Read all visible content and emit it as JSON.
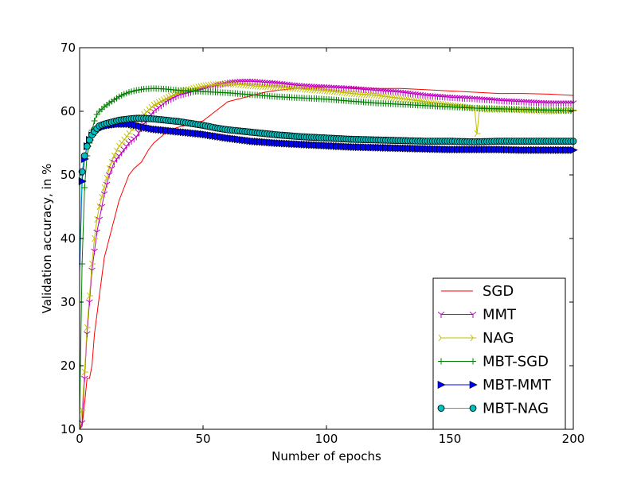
{
  "chart_data": {
    "type": "line",
    "title": "",
    "xlabel": "Number of epochs",
    "ylabel": "Validation accuracy, in %",
    "xlim": [
      0,
      200
    ],
    "ylim": [
      10,
      70
    ],
    "xticks": [
      0,
      50,
      100,
      150,
      200
    ],
    "yticks": [
      10,
      20,
      30,
      40,
      50,
      60,
      70
    ],
    "grid": false,
    "legend_position": "lower-right",
    "series": [
      {
        "name": "SGD",
        "color": "#ff0000",
        "marker": "none",
        "x": [
          0,
          1,
          2,
          3,
          4,
          5,
          6,
          7,
          8,
          9,
          10,
          12,
          14,
          16,
          18,
          20,
          22,
          25,
          28,
          30,
          33,
          36,
          40,
          45,
          50,
          55,
          60,
          65,
          70,
          75,
          80,
          85,
          90,
          95,
          100,
          110,
          120,
          130,
          140,
          150,
          160,
          170,
          180,
          190,
          200
        ],
        "values": [
          10,
          10.5,
          14,
          18,
          18,
          20,
          25,
          28,
          31,
          34,
          37,
          40,
          43,
          46,
          48,
          50,
          51,
          52,
          54,
          55,
          56,
          57,
          57.5,
          58,
          58.5,
          60,
          61.5,
          62,
          62.5,
          63,
          63.3,
          63.5,
          63.6,
          63.7,
          63.8,
          63.7,
          63.6,
          63.6,
          63.4,
          63.2,
          63,
          62.8,
          62.8,
          62.7,
          62.5
        ]
      },
      {
        "name": "MMT",
        "color": "#bf00bf",
        "marker": "tri_down",
        "x": [
          0,
          1,
          2,
          3,
          4,
          5,
          6,
          7,
          8,
          10,
          12,
          14,
          16,
          18,
          20,
          23,
          26,
          30,
          35,
          40,
          45,
          50,
          55,
          60,
          65,
          70,
          80,
          90,
          100,
          110,
          120,
          130,
          140,
          150,
          160,
          170,
          180,
          190,
          200
        ],
        "values": [
          10,
          11,
          18,
          25,
          30,
          35,
          38,
          41,
          43,
          47,
          50,
          52,
          53,
          54,
          55,
          56,
          58,
          60,
          61.5,
          62.5,
          63,
          63.5,
          64,
          64.5,
          64.7,
          64.7,
          64.4,
          64,
          63.8,
          63.6,
          63.3,
          63,
          62.5,
          62.2,
          62,
          61.7,
          61.5,
          61.3,
          61.3
        ]
      },
      {
        "name": "NAG",
        "color": "#bfbf00",
        "marker": "tri_right",
        "x": [
          0,
          1,
          2,
          3,
          4,
          5,
          6,
          7,
          8,
          10,
          12,
          14,
          16,
          18,
          20,
          23,
          26,
          30,
          35,
          40,
          45,
          50,
          55,
          60,
          65,
          70,
          80,
          90,
          100,
          110,
          120,
          130,
          140,
          150,
          155,
          160,
          161,
          162,
          165,
          170,
          180,
          190,
          200
        ],
        "values": [
          10,
          13,
          19,
          26,
          31,
          36,
          40,
          43,
          45,
          48,
          51,
          53,
          54.5,
          55.5,
          56.5,
          58,
          59.5,
          61,
          62,
          63,
          63.5,
          64,
          64.2,
          64.3,
          64.2,
          64,
          63.8,
          63.5,
          63.2,
          62.8,
          62.5,
          62,
          61.5,
          61,
          60.8,
          60.5,
          56.5,
          60.5,
          60.3,
          60.3,
          60.2,
          60,
          60.2
        ]
      },
      {
        "name": "MBT-SGD",
        "color": "#008000",
        "marker": "plus",
        "x": [
          0,
          1,
          2,
          3,
          4,
          5,
          6,
          7,
          8,
          10,
          12,
          14,
          16,
          18,
          20,
          23,
          26,
          30,
          35,
          40,
          45,
          50,
          60,
          70,
          80,
          90,
          100,
          110,
          120,
          130,
          140,
          150,
          160,
          170,
          180,
          190,
          200
        ],
        "values": [
          12,
          36,
          48,
          53,
          55,
          57,
          58.5,
          59.5,
          60,
          60.7,
          61.3,
          61.8,
          62.3,
          62.7,
          63,
          63.3,
          63.5,
          63.6,
          63.5,
          63.3,
          63.2,
          63.1,
          62.9,
          62.6,
          62.3,
          62.1,
          61.9,
          61.6,
          61.3,
          61.1,
          60.9,
          60.7,
          60.5,
          60.4,
          60.3,
          60.2,
          60.1
        ]
      },
      {
        "name": "MBT-MMT",
        "color": "#0000ff",
        "marker": "triangle_right",
        "x": [
          0,
          1,
          2,
          3,
          4,
          5,
          6,
          7,
          8,
          10,
          12,
          14,
          16,
          18,
          20,
          23,
          26,
          30,
          35,
          40,
          45,
          50,
          55,
          60,
          70,
          80,
          90,
          100,
          110,
          120,
          130,
          140,
          150,
          160,
          170,
          180,
          190,
          200
        ],
        "values": [
          34.7,
          49,
          52.5,
          54.5,
          55.5,
          56.2,
          56.7,
          57,
          57.3,
          57.6,
          57.8,
          57.9,
          58,
          58,
          58,
          57.8,
          57.5,
          57.2,
          57,
          56.8,
          56.6,
          56.4,
          56.1,
          55.8,
          55.3,
          55,
          54.8,
          54.6,
          54.4,
          54.3,
          54.2,
          54.1,
          54,
          54,
          54,
          53.9,
          53.9,
          53.9
        ]
      },
      {
        "name": "MBT-NAG",
        "color": "#00bfbf",
        "marker": "circle",
        "x": [
          0,
          1,
          2,
          3,
          4,
          5,
          6,
          7,
          8,
          10,
          12,
          14,
          16,
          18,
          20,
          23,
          26,
          30,
          35,
          40,
          45,
          50,
          55,
          60,
          70,
          80,
          90,
          100,
          110,
          120,
          130,
          140,
          150,
          160,
          170,
          180,
          190,
          200
        ],
        "values": [
          36.5,
          50.5,
          53,
          54.5,
          55.5,
          56.3,
          56.8,
          57.3,
          57.7,
          58,
          58.2,
          58.4,
          58.6,
          58.7,
          58.8,
          58.9,
          58.9,
          58.8,
          58.6,
          58.4,
          58.1,
          57.8,
          57.4,
          57.1,
          56.7,
          56.3,
          56,
          55.8,
          55.6,
          55.5,
          55.4,
          55.3,
          55.3,
          55.2,
          55.3,
          55.3,
          55.3,
          55.3
        ]
      }
    ]
  }
}
